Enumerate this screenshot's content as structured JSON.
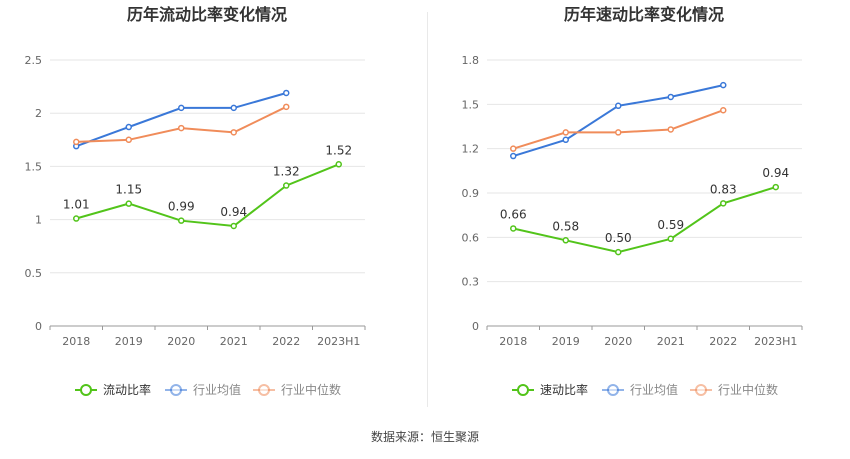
{
  "charts": [
    {
      "type": "line",
      "title": "历年流动比率变化情况",
      "categories": [
        "2018",
        "2019",
        "2020",
        "2021",
        "2022",
        "2023H1"
      ],
      "ylim": [
        0,
        2.5
      ],
      "yticks": [
        "0",
        "0.5",
        "1",
        "1.5",
        "2",
        "2.5"
      ],
      "ytick_values": [
        0,
        0.5,
        1,
        1.5,
        2,
        2.5
      ],
      "series": [
        {
          "name": "流动比率",
          "color": "#52c41a",
          "values": [
            1.01,
            1.15,
            0.99,
            0.94,
            1.32,
            1.52
          ],
          "labels": [
            "1.01",
            "1.15",
            "0.99",
            "0.94",
            "1.32",
            "1.52"
          ]
        },
        {
          "name": "行业均值",
          "color": "#3a78d8",
          "values": [
            1.69,
            1.87,
            2.05,
            2.05,
            2.19,
            null
          ]
        },
        {
          "name": "行业中位数",
          "color": "#f08c5a",
          "values": [
            1.73,
            1.75,
            1.86,
            1.82,
            2.06,
            null
          ]
        }
      ]
    },
    {
      "type": "line",
      "title": "历年速动比率变化情况",
      "categories": [
        "2018",
        "2019",
        "2020",
        "2021",
        "2022",
        "2023H1"
      ],
      "ylim": [
        0,
        1.8
      ],
      "yticks": [
        "0",
        "0.3",
        "0.6",
        "0.9",
        "1.2",
        "1.5",
        "1.8"
      ],
      "ytick_values": [
        0,
        0.3,
        0.6,
        0.9,
        1.2,
        1.5,
        1.8
      ],
      "series": [
        {
          "name": "速动比率",
          "color": "#52c41a",
          "values": [
            0.66,
            0.58,
            0.5,
            0.59,
            0.83,
            0.94
          ],
          "labels": [
            "0.66",
            "0.58",
            "0.50",
            "0.59",
            "0.83",
            "0.94"
          ]
        },
        {
          "name": "行业均值",
          "color": "#3a78d8",
          "values": [
            1.15,
            1.26,
            1.49,
            1.55,
            1.63,
            null
          ]
        },
        {
          "name": "行业中位数",
          "color": "#f08c5a",
          "values": [
            1.2,
            1.31,
            1.31,
            1.33,
            1.46,
            null
          ]
        }
      ]
    }
  ],
  "source_text": "数据来源：恒生聚源"
}
